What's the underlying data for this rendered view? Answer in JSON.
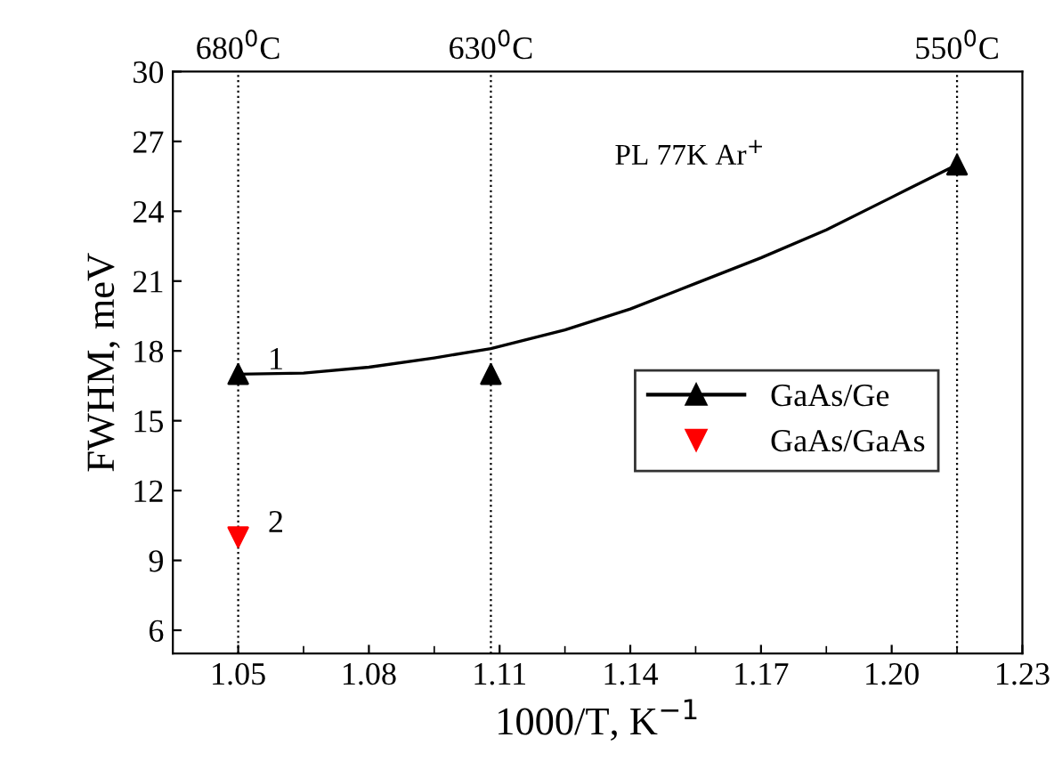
{
  "chart_data": {
    "type": "scatter",
    "xlabel": "1000/T, K$^{−1}$",
    "ylabel": "FWHM, meV",
    "xlim": [
      1.035,
      1.23
    ],
    "xticks": [
      1.05,
      1.08,
      1.11,
      1.14,
      1.17,
      {
        "value": 1.2,
        "label": "1.20"
      },
      1.23
    ],
    "ylim": [
      5,
      30
    ],
    "yticks": [
      6,
      9,
      12,
      15,
      18,
      21,
      24,
      27,
      30
    ],
    "ref_lines": [
      {
        "axis": "x",
        "value": 1.05,
        "label": "680$^{0}$C",
        "line_style": "dotted",
        "color": "#000000"
      },
      {
        "axis": "x",
        "value": 1.108,
        "label": "630$^{0}$C",
        "line_style": "dotted",
        "color": "#000000"
      },
      {
        "axis": "x",
        "value": 1.215,
        "label": "550$^{0}$C",
        "line_style": "dotted",
        "color": "#000000"
      }
    ],
    "series": [
      {
        "name": "GaAs/Ge",
        "marker": "triangle",
        "color": "#000000",
        "x": [
          1.05,
          1.108,
          1.215
        ],
        "values": [
          17,
          17,
          26
        ]
      },
      {
        "name": "GaAs/GaAs",
        "marker": "triangle_down",
        "color": "#ff0000",
        "x": [
          1.05
        ],
        "values": [
          10
        ]
      },
      {
        "type": "line",
        "marker": "none",
        "color": "#000000",
        "x": [
          1.05,
          1.065,
          1.08,
          1.095,
          1.108,
          1.125,
          1.14,
          1.155,
          1.17,
          1.185,
          1.2,
          1.215
        ],
        "values": [
          17,
          17.05,
          17.3,
          17.7,
          18.1,
          18.9,
          19.8,
          20.9,
          22,
          23.2,
          24.6,
          26
        ]
      }
    ],
    "annotations": [
      {
        "text": "1",
        "x": 1.05,
        "y": 17
      },
      {
        "text": "2",
        "x": 1.05,
        "y": 10
      },
      "PL 77K Ar$^{+}$"
    ],
    "legend": "right",
    "grid": false
  }
}
